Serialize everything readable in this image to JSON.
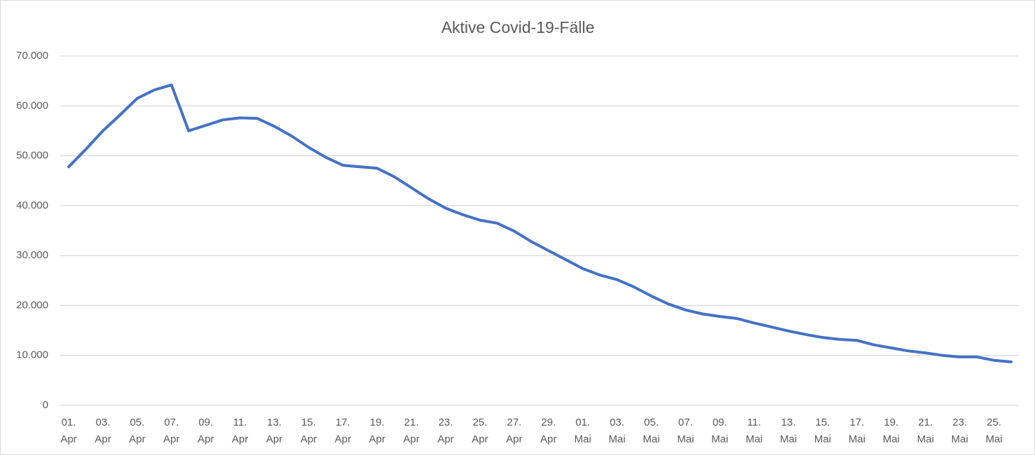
{
  "chart_data": {
    "type": "line",
    "title": "Aktive Covid-19-Fälle",
    "categories": [
      "01. Apr",
      null,
      "03. Apr",
      null,
      "05. Apr",
      null,
      "07. Apr",
      null,
      "09. Apr",
      null,
      "11. Apr",
      null,
      "13. Apr",
      null,
      "15. Apr",
      null,
      "17. Apr",
      null,
      "19. Apr",
      null,
      "21. Apr",
      null,
      "23. Apr",
      null,
      "25. Apr",
      null,
      "27. Apr",
      null,
      "29. Apr",
      null,
      "01. Mai",
      null,
      "03. Mai",
      null,
      "05. Mai",
      null,
      "07. Mai",
      null,
      "09. Mai",
      null,
      "11. Mai",
      null,
      "13. Mai",
      null,
      "15. Mai",
      null,
      "17. Mai",
      null,
      "19. Mai",
      null,
      "21. Mai",
      null,
      "23. Mai",
      null,
      "25. Mai",
      null
    ],
    "values": [
      47800,
      51300,
      55000,
      58200,
      61500,
      63200,
      64200,
      55000,
      56100,
      57200,
      57600,
      57500,
      55900,
      54000,
      51700,
      49700,
      48100,
      47800,
      47500,
      45800,
      43600,
      41400,
      39500,
      38200,
      37100,
      36500,
      34900,
      32800,
      31000,
      29200,
      27400,
      26100,
      25200,
      23700,
      21900,
      20300,
      19100,
      18300,
      17800,
      17400,
      16500,
      15700,
      14900,
      14200,
      13600,
      13200,
      13000,
      12100,
      11500,
      10900,
      10500,
      10000,
      9700,
      9700,
      9000,
      8700
    ],
    "color": "#4472c4",
    "ylim": [
      0,
      70000
    ],
    "yticks": [
      0,
      {
        "value": 10000,
        "label": "10.000"
      },
      {
        "value": 20000,
        "label": "20.000"
      },
      {
        "value": 30000,
        "label": "30.000"
      },
      {
        "value": 40000,
        "label": "40.000"
      },
      {
        "value": 50000,
        "label": "50.000"
      },
      {
        "value": 60000,
        "label": "60.000"
      },
      {
        "value": 70000,
        "label": "70.000"
      }
    ],
    "grid": true
  }
}
